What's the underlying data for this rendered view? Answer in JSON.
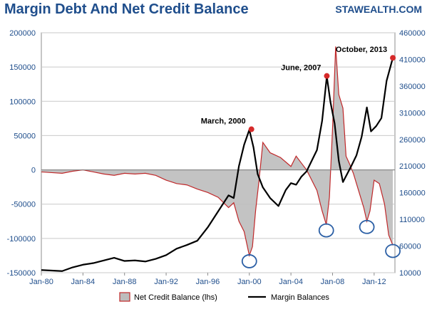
{
  "header": {
    "title": "Margin Debt And Net Credit Balance",
    "brand": "STAWEALTH.COM"
  },
  "colors": {
    "title": "#1f4e8c",
    "axis_text": "#1f4e8c",
    "net_credit_line": "#c0282a",
    "net_credit_fill": "#bdbdbd",
    "margin_line": "#000000",
    "marker": "#d62a2a",
    "circle": "#2b5fa5",
    "grid": "#c9c9c9"
  },
  "chart_data": {
    "type": "line",
    "title": "Margin Debt And Net Credit Balance",
    "xlabel": "",
    "ylabel_left": "",
    "ylabel_right": "",
    "x_ticks": [
      "Jan-80",
      "Jan-84",
      "Jan-88",
      "Jan-92",
      "Jan-96",
      "Jan-00",
      "Jan-04",
      "Jan-08",
      "Jan-12"
    ],
    "x_tick_years": [
      1980,
      1984,
      1988,
      1992,
      1996,
      2000,
      2004,
      2008,
      2012
    ],
    "xlim": [
      1980,
      2014.0
    ],
    "ylim_left": [
      -150000,
      200000
    ],
    "ylim_right": [
      10000,
      460000
    ],
    "y_ticks_left": [
      200000,
      150000,
      100000,
      50000,
      0,
      -50000,
      -100000,
      -150000
    ],
    "y_ticks_left_labels": [
      "200000",
      "150000",
      "100000",
      "50000",
      "0",
      "-50000",
      "-100000",
      "-150000"
    ],
    "y_ticks_right": [
      460000,
      410000,
      360000,
      310000,
      260000,
      210000,
      160000,
      110000,
      60000,
      10000
    ],
    "y_ticks_right_labels": [
      "460000",
      "410000",
      "360000",
      "310000",
      "260000",
      "210000",
      "160000",
      "110000",
      "60000",
      "10000"
    ],
    "grid": "horizontal",
    "legend_position": "bottom",
    "series": [
      {
        "name": "Net Credit Balance (lhs)",
        "axis": "left",
        "style": "area",
        "points": [
          [
            1980.0,
            -3000
          ],
          [
            1981.0,
            -4000
          ],
          [
            1982.0,
            -5000
          ],
          [
            1983.0,
            -2000
          ],
          [
            1984.0,
            0
          ],
          [
            1985.0,
            -3000
          ],
          [
            1986.0,
            -6000
          ],
          [
            1987.0,
            -8000
          ],
          [
            1988.0,
            -5000
          ],
          [
            1989.0,
            -6000
          ],
          [
            1990.0,
            -5000
          ],
          [
            1991.0,
            -8000
          ],
          [
            1992.0,
            -15000
          ],
          [
            1993.0,
            -20000
          ],
          [
            1994.0,
            -22000
          ],
          [
            1995.0,
            -28000
          ],
          [
            1996.0,
            -33000
          ],
          [
            1997.0,
            -40000
          ],
          [
            1998.0,
            -55000
          ],
          [
            1998.5,
            -48000
          ],
          [
            1999.0,
            -75000
          ],
          [
            1999.5,
            -90000
          ],
          [
            2000.0,
            -125000
          ],
          [
            2000.3,
            -112000
          ],
          [
            2000.6,
            -60000
          ],
          [
            2000.9,
            -20000
          ],
          [
            2001.3,
            40000
          ],
          [
            2002.0,
            25000
          ],
          [
            2003.0,
            18000
          ],
          [
            2004.0,
            5000
          ],
          [
            2004.5,
            20000
          ],
          [
            2005.0,
            10000
          ],
          [
            2005.5,
            0
          ],
          [
            2006.0,
            -15000
          ],
          [
            2006.5,
            -30000
          ],
          [
            2007.0,
            -60000
          ],
          [
            2007.4,
            -80000
          ],
          [
            2007.7,
            -40000
          ],
          [
            2008.0,
            60000
          ],
          [
            2008.3,
            180000
          ],
          [
            2008.6,
            110000
          ],
          [
            2009.0,
            90000
          ],
          [
            2009.3,
            20000
          ],
          [
            2009.6,
            10000
          ],
          [
            2010.0,
            -5000
          ],
          [
            2010.5,
            -30000
          ],
          [
            2011.0,
            -55000
          ],
          [
            2011.3,
            -75000
          ],
          [
            2011.6,
            -60000
          ],
          [
            2012.0,
            -15000
          ],
          [
            2012.5,
            -20000
          ],
          [
            2013.0,
            -50000
          ],
          [
            2013.4,
            -95000
          ],
          [
            2013.8,
            -110000
          ]
        ]
      },
      {
        "name": "Margin Balances",
        "axis": "right",
        "style": "line",
        "points": [
          [
            1980.0,
            15000
          ],
          [
            1981.0,
            14000
          ],
          [
            1982.0,
            13000
          ],
          [
            1983.0,
            20000
          ],
          [
            1984.0,
            25000
          ],
          [
            1985.0,
            28000
          ],
          [
            1986.0,
            33000
          ],
          [
            1987.0,
            38000
          ],
          [
            1988.0,
            32000
          ],
          [
            1989.0,
            33000
          ],
          [
            1990.0,
            31000
          ],
          [
            1991.0,
            36000
          ],
          [
            1992.0,
            43000
          ],
          [
            1993.0,
            55000
          ],
          [
            1994.0,
            62000
          ],
          [
            1995.0,
            70000
          ],
          [
            1996.0,
            95000
          ],
          [
            1997.0,
            125000
          ],
          [
            1998.0,
            155000
          ],
          [
            1998.5,
            150000
          ],
          [
            1999.0,
            210000
          ],
          [
            1999.5,
            250000
          ],
          [
            2000.0,
            278000
          ],
          [
            2000.4,
            245000
          ],
          [
            2000.8,
            195000
          ],
          [
            2001.3,
            170000
          ],
          [
            2002.0,
            150000
          ],
          [
            2002.8,
            135000
          ],
          [
            2003.5,
            165000
          ],
          [
            2004.0,
            178000
          ],
          [
            2004.5,
            175000
          ],
          [
            2005.0,
            190000
          ],
          [
            2005.5,
            200000
          ],
          [
            2006.0,
            220000
          ],
          [
            2006.5,
            240000
          ],
          [
            2007.0,
            295000
          ],
          [
            2007.45,
            378000
          ],
          [
            2007.8,
            330000
          ],
          [
            2008.2,
            290000
          ],
          [
            2008.6,
            220000
          ],
          [
            2009.0,
            180000
          ],
          [
            2009.4,
            195000
          ],
          [
            2009.8,
            210000
          ],
          [
            2010.3,
            230000
          ],
          [
            2010.8,
            265000
          ],
          [
            2011.3,
            320000
          ],
          [
            2011.7,
            275000
          ],
          [
            2012.2,
            285000
          ],
          [
            2012.7,
            300000
          ],
          [
            2013.2,
            370000
          ],
          [
            2013.8,
            413000
          ]
        ]
      }
    ],
    "annotations": [
      {
        "label": "March, 2000",
        "x": 2000.2,
        "y": 279000,
        "axis": "right",
        "type": "peak"
      },
      {
        "label": "June, 2007",
        "x": 2007.45,
        "y": 379000,
        "axis": "right",
        "type": "peak"
      },
      {
        "label": "October, 2013",
        "x": 2013.8,
        "y": 413000,
        "axis": "right",
        "type": "peak"
      }
    ],
    "highlight_circles": [
      {
        "x": 2000.0,
        "y": -125000,
        "axis": "left"
      },
      {
        "x": 2007.4,
        "y": -80000,
        "axis": "left"
      },
      {
        "x": 2011.3,
        "y": -75000,
        "axis": "left"
      },
      {
        "x": 2013.8,
        "y": -110000,
        "axis": "left"
      }
    ]
  }
}
